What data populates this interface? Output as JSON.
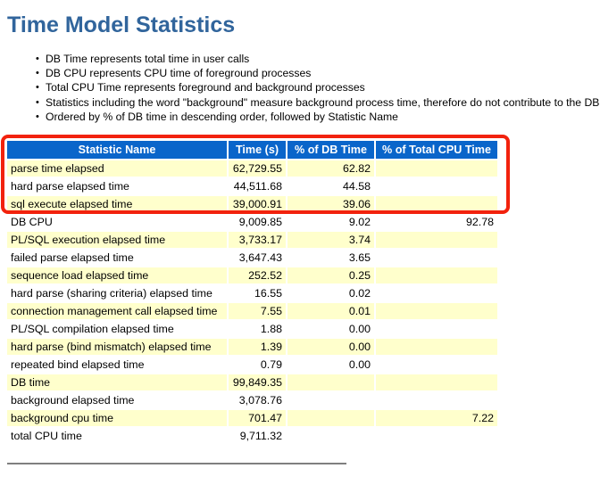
{
  "report": {
    "title": "Time Model Statistics",
    "notes": [
      "DB Time represents total time in user calls",
      "DB CPU represents CPU time of foreground processes",
      "Total CPU Time represents foreground and background processes",
      "Statistics including the word \"background\" measure background process time, therefore do not contribute to the DB time statistic",
      "Ordered by % of DB time in descending order, followed by Statistic Name"
    ]
  },
  "table": {
    "columns": [
      "Statistic Name",
      "Time (s)",
      "% of DB Time",
      "% of Total CPU Time"
    ],
    "rows": [
      [
        "parse time elapsed",
        "62,729.55",
        "62.82",
        ""
      ],
      [
        "hard parse elapsed time",
        "44,511.68",
        "44.58",
        ""
      ],
      [
        "sql execute elapsed time",
        "39,000.91",
        "39.06",
        ""
      ],
      [
        "DB CPU",
        "9,009.85",
        "9.02",
        "92.78"
      ],
      [
        "PL/SQL execution elapsed time",
        "3,733.17",
        "3.74",
        ""
      ],
      [
        "failed parse elapsed time",
        "3,647.43",
        "3.65",
        ""
      ],
      [
        "sequence load elapsed time",
        "252.52",
        "0.25",
        ""
      ],
      [
        "hard parse (sharing criteria) elapsed time",
        "16.55",
        "0.02",
        ""
      ],
      [
        "connection management call elapsed time",
        "7.55",
        "0.01",
        ""
      ],
      [
        "PL/SQL compilation elapsed time",
        "1.88",
        "0.00",
        ""
      ],
      [
        "hard parse (bind mismatch) elapsed time",
        "1.39",
        "0.00",
        ""
      ],
      [
        "repeated bind elapsed time",
        "0.79",
        "0.00",
        ""
      ],
      [
        "DB time",
        "99,849.35",
        "",
        ""
      ],
      [
        "background elapsed time",
        "3,078.76",
        "",
        ""
      ],
      [
        "background cpu time",
        "701.47",
        "",
        "7.22"
      ],
      [
        "total CPU time",
        "9,711.32",
        "",
        ""
      ]
    ]
  },
  "annotation": {
    "type": "red-highlight-box",
    "highlighted_rows": [
      "parse time elapsed",
      "hard parse elapsed time",
      "sql execute elapsed time"
    ],
    "color": "#f2220d"
  },
  "colors": {
    "title_text": "#31659c",
    "header_bg": "#0a65ca",
    "header_text": "#ffffff",
    "row_alt_bg": "#ffffcc",
    "row_bg": "#ffffff",
    "rule": "#7f7f7f"
  }
}
